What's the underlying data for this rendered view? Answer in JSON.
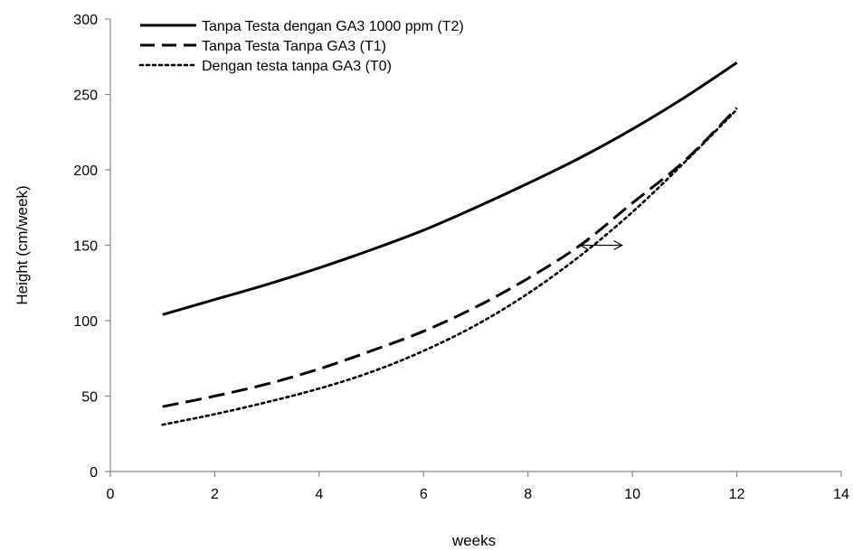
{
  "chart_data": {
    "type": "line",
    "title": "",
    "xlabel": "weeks",
    "ylabel": "Height  (cm/week)",
    "xlim": [
      0,
      14
    ],
    "ylim": [
      0,
      300
    ],
    "xticks": [
      0,
      2,
      4,
      6,
      8,
      10,
      12,
      14
    ],
    "yticks": [
      0,
      50,
      100,
      150,
      200,
      250,
      300
    ],
    "grid": false,
    "legend_position": "top-left",
    "series": [
      {
        "name": "Tanpa Testa dengan GA3 1000 ppm (T2)",
        "style": "solid",
        "color": "#000000",
        "x": [
          1,
          2,
          3,
          4,
          5,
          6,
          7,
          8,
          9,
          10,
          11,
          12
        ],
        "y": [
          104,
          114,
          124,
          135,
          147,
          160,
          175,
          191,
          208,
          227,
          248,
          271
        ]
      },
      {
        "name": "Tanpa Testa Tanpa GA3 (T1)",
        "style": "dashed",
        "color": "#000000",
        "x": [
          1,
          2,
          3,
          4,
          5,
          6,
          7,
          8,
          9,
          10,
          11,
          12
        ],
        "y": [
          43,
          50,
          58,
          68,
          80,
          93,
          109,
          128,
          150,
          178,
          206,
          241
        ]
      },
      {
        "name": "Dengan testa tanpa GA3 (T0)",
        "style": "dotted",
        "color": "#000000",
        "x": [
          1,
          2,
          3,
          4,
          5,
          6,
          7,
          8,
          9,
          10,
          11,
          12
        ],
        "y": [
          31,
          38,
          46,
          55,
          66,
          80,
          97,
          118,
          143,
          172,
          205,
          240
        ]
      }
    ],
    "annotations": [
      {
        "type": "double-arrow",
        "x1": 9.0,
        "x2": 9.8,
        "y": 150
      }
    ]
  }
}
